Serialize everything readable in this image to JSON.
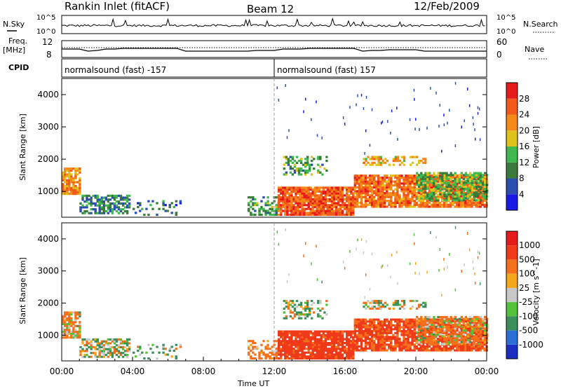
{
  "header": {
    "station": "Rankin Inlet (fitACF)",
    "beam": "Beam 12",
    "date": "12/Feb/2009"
  },
  "summary_panel": {
    "nsky_label": "N.Sky",
    "nsky_ticks": [
      "10^5",
      "10^0"
    ],
    "nsearch_label": "N.Search",
    "nsearch_ticks": [
      "10^5",
      "10^0"
    ],
    "freq_label": "Freq.",
    "freq_unit": "[MHz]",
    "freq_ticks": [
      "12",
      "8"
    ],
    "nave_label": "Nave",
    "nave_ticks": [
      "60",
      "0"
    ],
    "cpid_label": "CPID",
    "cpid_segments": [
      {
        "start_hour": 0,
        "end_hour": 12,
        "label": "normalsound (fast) -157"
      },
      {
        "start_hour": 12,
        "end_hour": 24,
        "label": "normalsound (fast) 157"
      }
    ]
  },
  "chart_data": [
    {
      "type": "heatmap",
      "name": "power-panel",
      "xlabel": "",
      "ylabel": "Slant Range [km]",
      "xlim": [
        0,
        24
      ],
      "ylim": [
        200,
        4500
      ],
      "yticks": [
        1000,
        2000,
        3000,
        4000
      ],
      "colorbar": {
        "label": "Power [dB]",
        "levels": [
          4,
          8,
          12,
          16,
          20,
          24,
          28
        ],
        "colors": [
          "#1a1ae6",
          "#2b4fb0",
          "#3a7a3a",
          "#3fb84f",
          "#e0c31a",
          "#f58a1a",
          "#f15a1a",
          "#e51b1b"
        ]
      }
    },
    {
      "type": "heatmap",
      "name": "velocity-panel",
      "xlabel": "Time UT",
      "ylabel": "Slant Range [km]",
      "xlim": [
        0,
        24
      ],
      "ylim": [
        200,
        4500
      ],
      "xticks": [
        "00:00",
        "04:00",
        "08:00",
        "12:00",
        "16:00",
        "20:00",
        "00:00"
      ],
      "yticks": [
        1000,
        2000,
        3000,
        4000
      ],
      "colorbar": {
        "label": "Velocity [m s^-1]",
        "levels": [
          1000,
          500,
          100,
          25,
          -25,
          -100,
          -500,
          -1000
        ],
        "colors": [
          "#1a2fbf",
          "#2b6fd6",
          "#3a8f5a",
          "#53c13a",
          "#c8c8c8",
          "#f5a51a",
          "#f5701a",
          "#ee3a1a",
          "#e61a1a"
        ]
      }
    }
  ]
}
